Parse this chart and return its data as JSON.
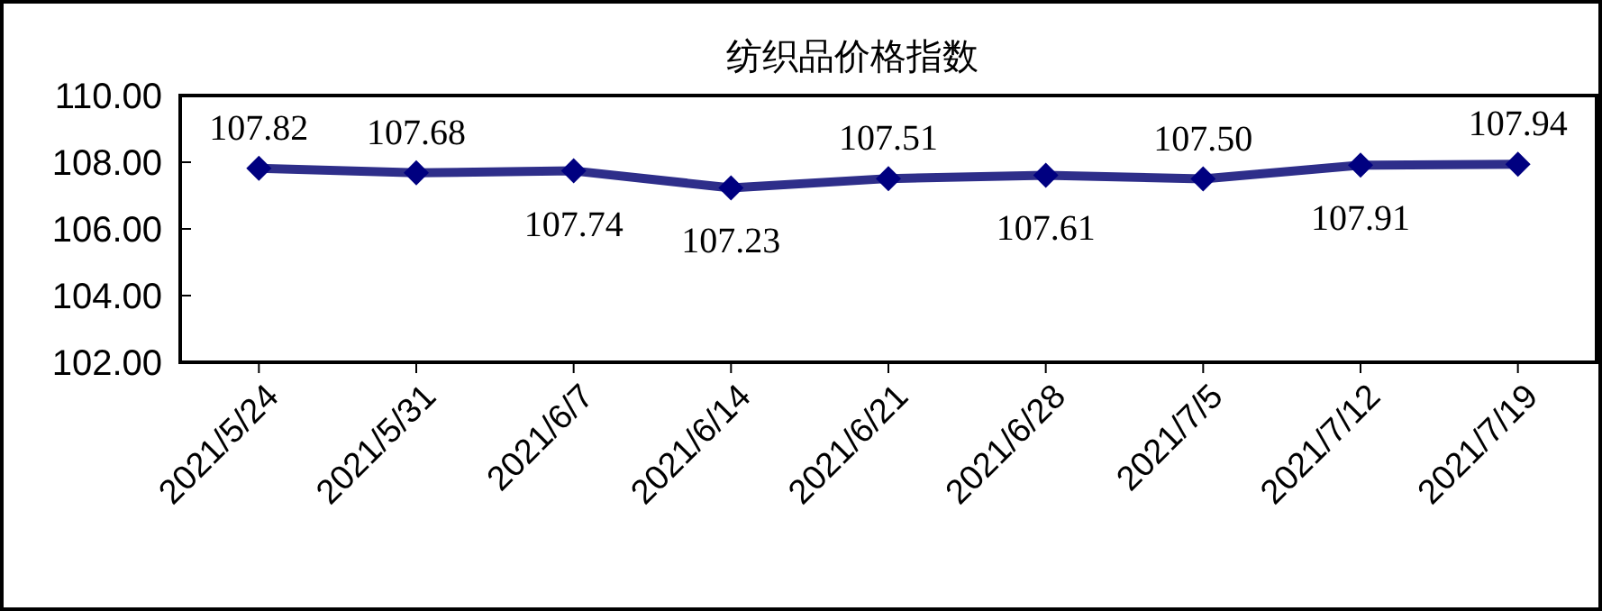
{
  "chart_data": {
    "type": "line",
    "title": "纺织品价格指数",
    "categories": [
      "2021/5/24",
      "2021/5/31",
      "2021/6/7",
      "2021/6/14",
      "2021/6/21",
      "2021/6/28",
      "2021/7/5",
      "2021/7/12",
      "2021/7/19"
    ],
    "series": [
      {
        "color": "#2e2e8a",
        "values": [
          107.82,
          107.68,
          107.74,
          107.23,
          107.51,
          107.61,
          107.5,
          107.91,
          107.94
        ],
        "value_labels": [
          "107.82",
          "107.68",
          "107.74",
          "107.23",
          "107.51",
          "107.61",
          "107.50",
          "107.91",
          "107.94"
        ]
      }
    ],
    "ylim": [
      102,
      110
    ],
    "yticks": [
      {
        "value": 102,
        "label": "102.00"
      },
      {
        "value": 104,
        "label": "104.00"
      },
      {
        "value": 106,
        "label": "106.00"
      },
      {
        "value": 108,
        "label": "108.00"
      },
      {
        "value": 110,
        "label": "110.00"
      }
    ],
    "marker": "diamond",
    "grid": false
  }
}
